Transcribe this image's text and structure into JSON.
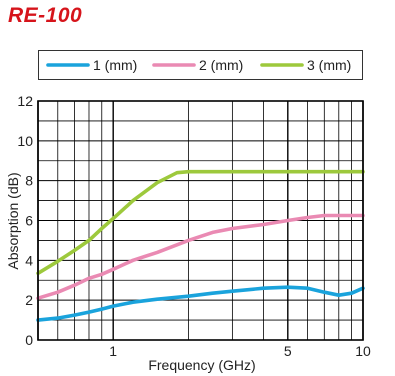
{
  "chart_data": {
    "title": "RE-100",
    "type": "line",
    "xlabel": "Frequency (GHz)",
    "ylabel": "Absorption (dB)",
    "xscale": "log",
    "xlim": [
      0.5,
      10
    ],
    "ylim": [
      0,
      12
    ],
    "xticks": [
      1,
      5,
      10
    ],
    "yticks": [
      0,
      2,
      4,
      6,
      8,
      10,
      12
    ],
    "grid": true,
    "legend": "top",
    "series": [
      {
        "name": "1 (mm)",
        "color": "#1aa3dc",
        "x": [
          0.5,
          0.6,
          0.7,
          0.8,
          0.9,
          1.0,
          1.2,
          1.5,
          2.0,
          2.5,
          3.0,
          4.0,
          5.0,
          6.0,
          7.0,
          8.0,
          9.0,
          10.0
        ],
        "y": [
          1.0,
          1.1,
          1.25,
          1.4,
          1.55,
          1.7,
          1.9,
          2.05,
          2.2,
          2.35,
          2.45,
          2.6,
          2.65,
          2.6,
          2.4,
          2.25,
          2.35,
          2.6
        ]
      },
      {
        "name": "2 (mm)",
        "color": "#ea8ab3",
        "x": [
          0.5,
          0.6,
          0.7,
          0.8,
          0.9,
          1.0,
          1.2,
          1.5,
          2.0,
          2.5,
          3.0,
          4.0,
          5.0,
          6.0,
          7.0,
          8.0,
          9.0,
          10.0
        ],
        "y": [
          2.1,
          2.4,
          2.75,
          3.1,
          3.3,
          3.55,
          4.0,
          4.4,
          5.0,
          5.4,
          5.6,
          5.8,
          6.0,
          6.15,
          6.25,
          6.25,
          6.25,
          6.25
        ]
      },
      {
        "name": "3 (mm)",
        "color": "#9dc93c",
        "x": [
          0.5,
          0.6,
          0.7,
          0.8,
          0.9,
          1.0,
          1.2,
          1.5,
          1.8,
          2.0,
          3.0,
          5.0,
          10.0
        ],
        "y": [
          3.35,
          3.95,
          4.5,
          5.0,
          5.6,
          6.1,
          7.0,
          7.9,
          8.4,
          8.45,
          8.45,
          8.45,
          8.45
        ]
      }
    ]
  }
}
